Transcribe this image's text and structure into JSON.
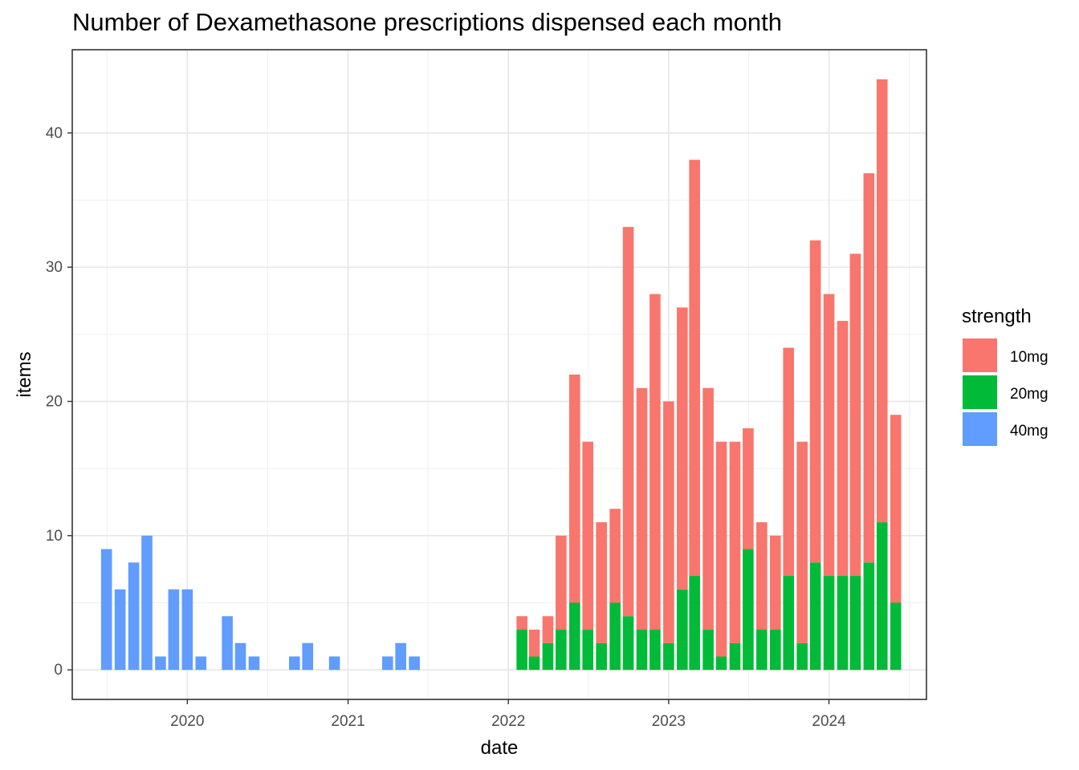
{
  "chart_data": {
    "type": "bar",
    "stacked": true,
    "title": "Number of Dexamethasone prescriptions dispensed each month",
    "xlabel": "date",
    "ylabel": "items",
    "x_tick_labels": [
      "2020",
      "2021",
      "2022",
      "2023",
      "2024"
    ],
    "y_ticks": [
      0,
      10,
      20,
      30,
      40
    ],
    "ylim": [
      -2.2,
      46.2
    ],
    "xlim": [
      "2019-04-14",
      "2024-08-10"
    ],
    "grid": true,
    "legend": {
      "title": "strength",
      "position": "right"
    },
    "series": [
      {
        "name": "10mg",
        "color": "#F8766D",
        "points": [
          {
            "x": "2022-02",
            "y": 1
          },
          {
            "x": "2022-03",
            "y": 2
          },
          {
            "x": "2022-04",
            "y": 2
          },
          {
            "x": "2022-05",
            "y": 7
          },
          {
            "x": "2022-06",
            "y": 17
          },
          {
            "x": "2022-07",
            "y": 14
          },
          {
            "x": "2022-08",
            "y": 9
          },
          {
            "x": "2022-09",
            "y": 7
          },
          {
            "x": "2022-10",
            "y": 29
          },
          {
            "x": "2022-11",
            "y": 18
          },
          {
            "x": "2022-12",
            "y": 25
          },
          {
            "x": "2023-01",
            "y": 18
          },
          {
            "x": "2023-02",
            "y": 21
          },
          {
            "x": "2023-03",
            "y": 31
          },
          {
            "x": "2023-04",
            "y": 18
          },
          {
            "x": "2023-05",
            "y": 16
          },
          {
            "x": "2023-06",
            "y": 15
          },
          {
            "x": "2023-07",
            "y": 9
          },
          {
            "x": "2023-08",
            "y": 8
          },
          {
            "x": "2023-09",
            "y": 7
          },
          {
            "x": "2023-10",
            "y": 17
          },
          {
            "x": "2023-11",
            "y": 15
          },
          {
            "x": "2023-12",
            "y": 24
          },
          {
            "x": "2024-01",
            "y": 21
          },
          {
            "x": "2024-02",
            "y": 19
          },
          {
            "x": "2024-03",
            "y": 24
          },
          {
            "x": "2024-04",
            "y": 29
          },
          {
            "x": "2024-05",
            "y": 33
          },
          {
            "x": "2024-06",
            "y": 14
          }
        ]
      },
      {
        "name": "20mg",
        "color": "#00BA38",
        "points": [
          {
            "x": "2022-02",
            "y": 3
          },
          {
            "x": "2022-03",
            "y": 1
          },
          {
            "x": "2022-04",
            "y": 2
          },
          {
            "x": "2022-05",
            "y": 3
          },
          {
            "x": "2022-06",
            "y": 5
          },
          {
            "x": "2022-07",
            "y": 3
          },
          {
            "x": "2022-08",
            "y": 2
          },
          {
            "x": "2022-09",
            "y": 5
          },
          {
            "x": "2022-10",
            "y": 4
          },
          {
            "x": "2022-11",
            "y": 3
          },
          {
            "x": "2022-12",
            "y": 3
          },
          {
            "x": "2023-01",
            "y": 2
          },
          {
            "x": "2023-02",
            "y": 6
          },
          {
            "x": "2023-03",
            "y": 7
          },
          {
            "x": "2023-04",
            "y": 3
          },
          {
            "x": "2023-05",
            "y": 1
          },
          {
            "x": "2023-06",
            "y": 2
          },
          {
            "x": "2023-07",
            "y": 9
          },
          {
            "x": "2023-08",
            "y": 3
          },
          {
            "x": "2023-09",
            "y": 3
          },
          {
            "x": "2023-10",
            "y": 7
          },
          {
            "x": "2023-11",
            "y": 2
          },
          {
            "x": "2023-12",
            "y": 8
          },
          {
            "x": "2024-01",
            "y": 7
          },
          {
            "x": "2024-02",
            "y": 7
          },
          {
            "x": "2024-03",
            "y": 7
          },
          {
            "x": "2024-04",
            "y": 8
          },
          {
            "x": "2024-05",
            "y": 11
          },
          {
            "x": "2024-06",
            "y": 5
          }
        ]
      },
      {
        "name": "40mg",
        "color": "#619CFF",
        "points": [
          {
            "x": "2019-07",
            "y": 9
          },
          {
            "x": "2019-08",
            "y": 6
          },
          {
            "x": "2019-09",
            "y": 8
          },
          {
            "x": "2019-10",
            "y": 10
          },
          {
            "x": "2019-11",
            "y": 1
          },
          {
            "x": "2019-12",
            "y": 6
          },
          {
            "x": "2020-01",
            "y": 6
          },
          {
            "x": "2020-02",
            "y": 1
          },
          {
            "x": "2020-04",
            "y": 4
          },
          {
            "x": "2020-05",
            "y": 2
          },
          {
            "x": "2020-06",
            "y": 1
          },
          {
            "x": "2020-09",
            "y": 1
          },
          {
            "x": "2020-10",
            "y": 2
          },
          {
            "x": "2020-12",
            "y": 1
          },
          {
            "x": "2021-04",
            "y": 1
          },
          {
            "x": "2021-05",
            "y": 2
          },
          {
            "x": "2021-06",
            "y": 1
          }
        ]
      }
    ]
  }
}
